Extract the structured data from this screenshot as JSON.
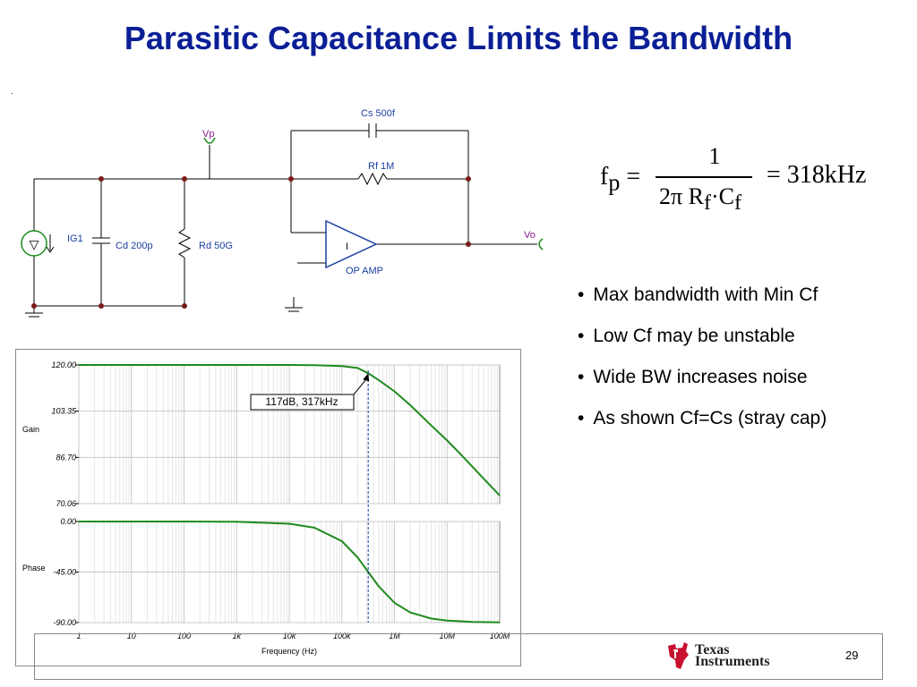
{
  "title": "Parasitic Capacitance Limits the Bandwidth",
  "dot": ".",
  "schematic": {
    "cs_label": "Cs 500f",
    "vp_label": "Vp",
    "rf_label": "Rf 1M",
    "vo_label": "Vo",
    "ig1_label": "IG1",
    "cd_label": "Cd 200p",
    "rd_label": "Rd 50G",
    "opamp_label": "OP AMP",
    "opamp_mark": "I",
    "source_symbol": "▽"
  },
  "formula": {
    "lhs_f": "f",
    "lhs_sub": "p",
    "lhs_eq": "=",
    "numerator": "1",
    "den_2pi": "2π",
    "den_R": "R",
    "den_R_sub": "f",
    "den_dot": "·",
    "den_C": "C",
    "den_C_sub": "f",
    "rhs": "= 318kHz"
  },
  "bullets": [
    "Max bandwidth with Min Cf",
    "Low Cf may be unstable",
    "Wide BW increases noise",
    "As shown Cf=Cs (stray cap)"
  ],
  "chart_data": [
    {
      "type": "line",
      "ylabel": "Gain",
      "xscale": "log",
      "xlim": [
        1,
        100000000
      ],
      "ylim": [
        70.06,
        120.0
      ],
      "yticks": [
        "120.00",
        "103.35",
        "86.70",
        "70.06"
      ],
      "series": [
        {
          "color": "#1f8a1f",
          "x": [
            1,
            10,
            100,
            1000,
            10000,
            30000,
            100000,
            200000,
            317000,
            500000,
            1000000,
            2000000,
            5000000,
            10000000,
            20000000,
            50000000,
            100000000
          ],
          "y": [
            120.0,
            120.0,
            120.0,
            120.0,
            120.0,
            119.9,
            119.6,
            118.9,
            117.0,
            114.6,
            110.5,
            105.5,
            98.2,
            92.8,
            87.0,
            79.0,
            73.0
          ]
        }
      ],
      "marker": {
        "x": 317000,
        "y": 117.0,
        "label": "117dB, 317kHz"
      }
    },
    {
      "type": "line",
      "ylabel": "Phase",
      "xlabel": "Frequency (Hz)",
      "xscale": "log",
      "xlim": [
        1,
        100000000
      ],
      "ylim": [
        -90.0,
        0.0
      ],
      "yticks": [
        "0.00",
        "-45.00",
        "-90.00"
      ],
      "xticks": [
        "1",
        "10",
        "100",
        "1k",
        "10k",
        "100k",
        "1M",
        "10M",
        "100M"
      ],
      "series": [
        {
          "color": "#1f8a1f",
          "x": [
            1,
            10,
            100,
            1000,
            10000,
            30000,
            100000,
            200000,
            317000,
            500000,
            1000000,
            2000000,
            5000000,
            10000000,
            30000000,
            100000000
          ],
          "y": [
            0,
            0,
            0,
            -0.2,
            -2,
            -5.5,
            -17.5,
            -32,
            -45,
            -57.6,
            -72.4,
            -81,
            -86.4,
            -88.2,
            -89.4,
            -89.8
          ]
        }
      ]
    }
  ],
  "footer": {
    "page_number": "29",
    "logo_line1": "Texas",
    "logo_line2": "Instruments"
  }
}
